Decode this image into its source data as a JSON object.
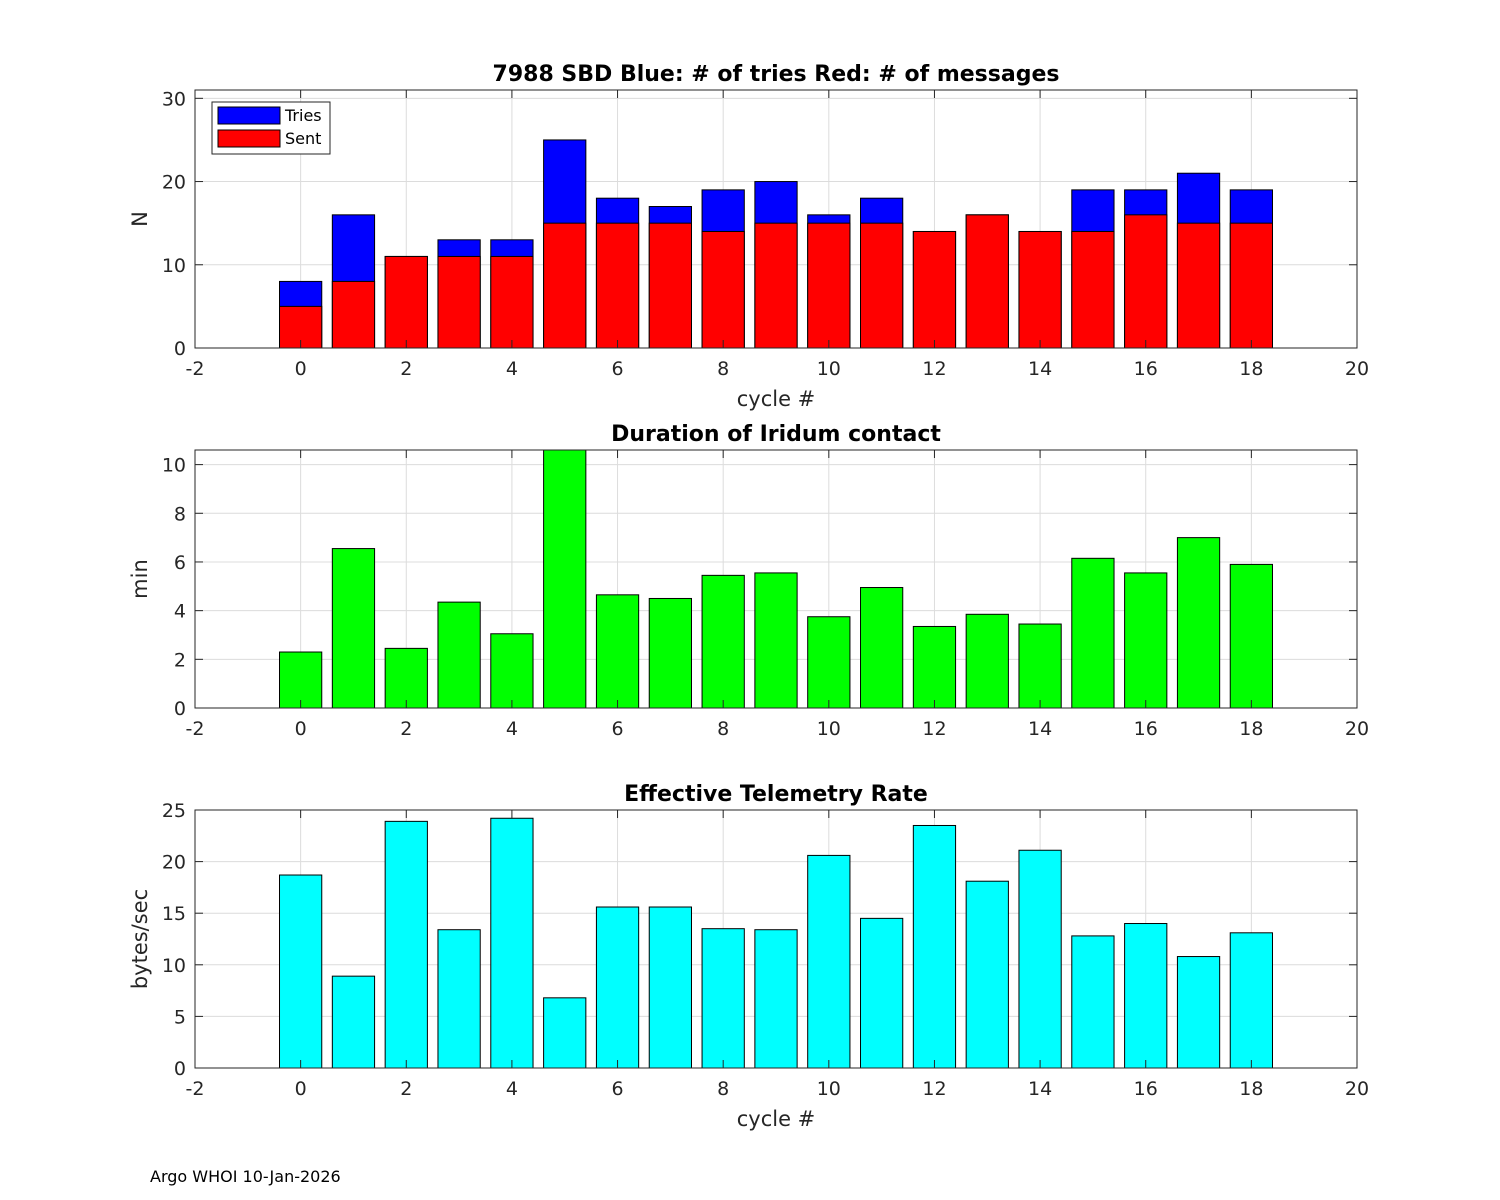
{
  "footer": "Argo WHOI 10-Jan-2026",
  "chart_data": [
    {
      "type": "bar",
      "stacked_overlay": true,
      "title": "7988 SBD  Blue: # of tries   Red: # of messages",
      "xlabel": "cycle #",
      "ylabel": "N",
      "xlim": [
        -2,
        20
      ],
      "ylim": [
        0,
        31
      ],
      "xticks": [
        -2,
        0,
        2,
        4,
        6,
        8,
        10,
        12,
        14,
        16,
        18,
        20
      ],
      "yticks": [
        0,
        10,
        20,
        30
      ],
      "grid": true,
      "legend": {
        "placement": "top-left",
        "entries": [
          "Tries",
          "Sent"
        ]
      },
      "x": [
        0,
        1,
        2,
        3,
        4,
        5,
        6,
        7,
        8,
        9,
        10,
        11,
        12,
        13,
        14,
        15,
        16,
        17,
        18
      ],
      "series": [
        {
          "name": "Tries",
          "color": "#0000ff",
          "values": [
            8,
            16,
            11,
            13,
            13,
            25,
            18,
            17,
            19,
            20,
            16,
            18,
            14,
            16,
            14,
            19,
            19,
            21,
            19
          ]
        },
        {
          "name": "Sent",
          "color": "#ff0000",
          "values": [
            5,
            8,
            11,
            11,
            11,
            15,
            15,
            15,
            14,
            15,
            15,
            15,
            14,
            16,
            14,
            14,
            16,
            15,
            15
          ]
        }
      ]
    },
    {
      "type": "bar",
      "title": "Duration of Iridum contact",
      "xlabel": "",
      "ylabel": "min",
      "xlim": [
        -2,
        20
      ],
      "ylim": [
        0,
        10.6
      ],
      "xticks": [
        -2,
        0,
        2,
        4,
        6,
        8,
        10,
        12,
        14,
        16,
        18,
        20
      ],
      "yticks": [
        0,
        2,
        4,
        6,
        8,
        10
      ],
      "grid": true,
      "x": [
        0,
        1,
        2,
        3,
        4,
        5,
        6,
        7,
        8,
        9,
        10,
        11,
        12,
        13,
        14,
        15,
        16,
        17,
        18
      ],
      "series": [
        {
          "name": "Duration",
          "color": "#00ff00",
          "values": [
            2.3,
            6.55,
            2.45,
            4.35,
            3.05,
            10.6,
            4.65,
            4.5,
            5.45,
            5.55,
            3.75,
            4.95,
            3.35,
            3.85,
            3.45,
            6.15,
            5.55,
            7.0,
            5.9
          ]
        }
      ]
    },
    {
      "type": "bar",
      "title": "Effective Telemetry Rate",
      "xlabel": "cycle #",
      "ylabel": "bytes/sec",
      "xlim": [
        -2,
        20
      ],
      "ylim": [
        0,
        25
      ],
      "xticks": [
        -2,
        0,
        2,
        4,
        6,
        8,
        10,
        12,
        14,
        16,
        18,
        20
      ],
      "yticks": [
        0,
        5,
        10,
        15,
        20,
        25
      ],
      "grid": true,
      "x": [
        0,
        1,
        2,
        3,
        4,
        5,
        6,
        7,
        8,
        9,
        10,
        11,
        12,
        13,
        14,
        15,
        16,
        17,
        18
      ],
      "series": [
        {
          "name": "Rate",
          "color": "#00ffff",
          "values": [
            18.7,
            8.9,
            23.9,
            13.4,
            24.2,
            6.8,
            15.6,
            15.6,
            13.5,
            13.4,
            20.6,
            14.5,
            23.5,
            18.1,
            21.1,
            12.8,
            14.0,
            10.8,
            13.1
          ]
        }
      ]
    }
  ]
}
